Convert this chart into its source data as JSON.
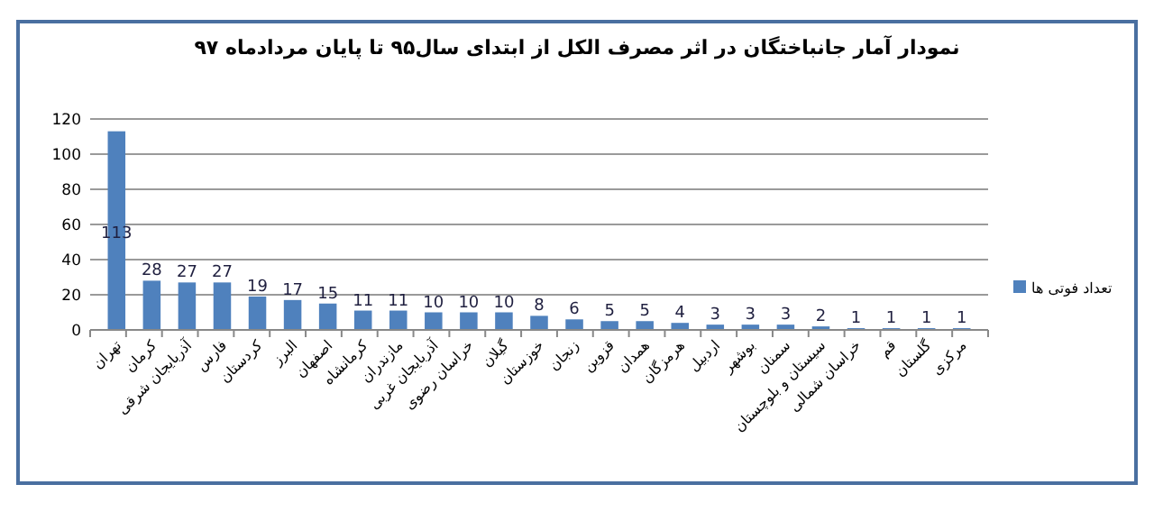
{
  "chart_data": {
    "type": "bar",
    "title": "نمودار آمار جانباختگان در اثر مصرف الکل از ابتدای سال۹۵ تا پایان مردادماه ۹۷",
    "categories": [
      "تهران",
      "کرمان",
      "آذربایجان شرقی",
      "فارس",
      "کردستان",
      "البرز",
      "اصفهان",
      "کرمانشاه",
      "مازندران",
      "آذربایجان غربی",
      "خراسان رضوی",
      "گیلان",
      "خوزستان",
      "زنجان",
      "قزوین",
      "همدان",
      "هرمزگان",
      "اردبیل",
      "بوشهر",
      "سمنان",
      "سیستان و بلوچستان",
      "خراسان شمالی",
      "قم",
      "گلستان",
      "مرکزی"
    ],
    "series": [
      {
        "name": "تعداد فوتی ها",
        "color": "#4f81bd",
        "values": [
          113,
          28,
          27,
          27,
          19,
          17,
          15,
          11,
          11,
          10,
          10,
          10,
          8,
          6,
          5,
          5,
          4,
          3,
          3,
          3,
          2,
          1,
          1,
          1,
          1
        ]
      }
    ],
    "ylim": [
      0,
      120
    ],
    "yticks": [
      0,
      20,
      40,
      60,
      80,
      100,
      120
    ],
    "grid": "y",
    "legend": "right",
    "data_labels": true
  }
}
